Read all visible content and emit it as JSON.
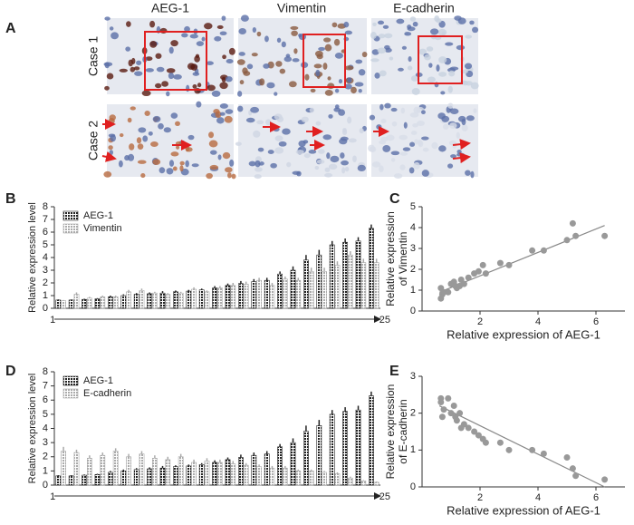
{
  "figure": {
    "column_headers": [
      "AEG-1",
      "Vimentin",
      "E-cadherin"
    ],
    "row_labels": [
      "Case 1",
      "Case 2"
    ],
    "panel_label": "A"
  },
  "chart_data": [
    {
      "type": "bar",
      "panel": "B",
      "ylabel": "Relative expression level",
      "categories": [
        "1",
        null,
        null,
        null,
        null,
        null,
        null,
        null,
        null,
        null,
        null,
        null,
        null,
        null,
        null,
        null,
        null,
        null,
        null,
        null,
        null,
        null,
        null,
        null,
        "25"
      ],
      "series": [
        {
          "name": "AEG-1",
          "color": "#222222",
          "values": [
            0.65,
            0.65,
            0.7,
            0.75,
            0.9,
            1.0,
            1.1,
            1.15,
            1.2,
            1.3,
            1.35,
            1.45,
            1.6,
            1.8,
            1.95,
            2.1,
            2.2,
            2.7,
            3.0,
            3.8,
            4.2,
            5.0,
            5.2,
            5.3,
            6.3
          ],
          "errors": [
            0.05,
            0.05,
            0.05,
            0.05,
            0.1,
            0.1,
            0.1,
            0.1,
            0.15,
            0.1,
            0.1,
            0.1,
            0.15,
            0.15,
            0.2,
            0.2,
            0.2,
            0.2,
            0.3,
            0.4,
            0.4,
            0.3,
            0.3,
            0.3,
            0.3
          ]
        },
        {
          "name": "Vimentin",
          "color": "#aaaaaa",
          "values": [
            0.6,
            1.1,
            0.8,
            0.9,
            0.9,
            1.3,
            1.4,
            1.2,
            1.1,
            1.2,
            1.5,
            1.3,
            1.6,
            1.8,
            1.9,
            2.2,
            1.8,
            2.3,
            2.2,
            2.9,
            2.9,
            3.4,
            4.2,
            3.6,
            3.6
          ],
          "errors": [
            0.05,
            0.15,
            0.1,
            0.1,
            0.1,
            0.15,
            0.15,
            0.1,
            0.1,
            0.1,
            0.15,
            0.1,
            0.15,
            0.2,
            0.2,
            0.2,
            0.2,
            0.2,
            0.2,
            0.3,
            0.3,
            0.3,
            0.3,
            0.3,
            0.3
          ]
        }
      ],
      "ylim": [
        0,
        8
      ],
      "yticks": [
        0,
        1,
        2,
        3,
        4,
        5,
        6,
        7,
        8
      ],
      "legend": "upper left"
    },
    {
      "type": "scatter",
      "panel": "C",
      "ylabel": [
        "Relative expression",
        "of Vimentin"
      ],
      "xlabel": "Relative expression of AEG-1",
      "color": "#999999",
      "x": [
        0.65,
        0.65,
        0.7,
        0.75,
        0.9,
        1.0,
        1.1,
        1.15,
        1.2,
        1.3,
        1.35,
        1.45,
        1.6,
        1.8,
        1.95,
        2.1,
        2.2,
        2.7,
        3.0,
        3.8,
        4.2,
        5.0,
        5.2,
        5.3,
        6.3
      ],
      "values": [
        0.6,
        1.1,
        0.8,
        0.9,
        0.9,
        1.3,
        1.4,
        1.2,
        1.1,
        1.2,
        1.5,
        1.3,
        1.6,
        1.8,
        1.9,
        2.2,
        1.8,
        2.3,
        2.2,
        2.9,
        2.9,
        3.4,
        4.2,
        3.6,
        3.6
      ],
      "fit": {
        "x": [
          0.6,
          6.3
        ],
        "y": [
          0.9,
          4.1
        ]
      },
      "xlim": [
        0,
        7
      ],
      "xticks": [
        2,
        4,
        6
      ],
      "ylim": [
        0,
        5
      ],
      "yticks": [
        0,
        1,
        2,
        3,
        4,
        5
      ]
    },
    {
      "type": "bar",
      "panel": "D",
      "ylabel": "Relative expression level",
      "categories": [
        "1",
        null,
        null,
        null,
        null,
        null,
        null,
        null,
        null,
        null,
        null,
        null,
        null,
        null,
        null,
        null,
        null,
        null,
        null,
        null,
        null,
        null,
        null,
        null,
        "25"
      ],
      "series": [
        {
          "name": "AEG-1",
          "color": "#222222",
          "values": [
            0.65,
            0.65,
            0.7,
            0.75,
            0.9,
            1.0,
            1.1,
            1.15,
            1.2,
            1.3,
            1.35,
            1.45,
            1.6,
            1.8,
            1.95,
            2.1,
            2.2,
            2.7,
            3.0,
            3.8,
            4.2,
            5.0,
            5.2,
            5.3,
            6.3
          ],
          "errors": [
            0.05,
            0.05,
            0.05,
            0.05,
            0.1,
            0.1,
            0.1,
            0.1,
            0.15,
            0.1,
            0.1,
            0.1,
            0.15,
            0.15,
            0.2,
            0.2,
            0.2,
            0.2,
            0.3,
            0.4,
            0.4,
            0.3,
            0.3,
            0.3,
            0.3
          ]
        },
        {
          "name": "E-cadherin",
          "color": "#aaaaaa",
          "values": [
            2.4,
            2.3,
            1.9,
            2.1,
            2.4,
            2.0,
            2.2,
            1.9,
            1.8,
            2.0,
            1.6,
            1.7,
            1.6,
            1.5,
            1.4,
            1.3,
            1.2,
            1.2,
            1.0,
            1.0,
            0.9,
            0.8,
            0.5,
            0.3,
            0.2
          ],
          "errors": [
            0.3,
            0.2,
            0.2,
            0.2,
            0.2,
            0.2,
            0.2,
            0.2,
            0.2,
            0.2,
            0.2,
            0.2,
            0.2,
            0.2,
            0.15,
            0.15,
            0.15,
            0.15,
            0.1,
            0.1,
            0.1,
            0.1,
            0.1,
            0.05,
            0.05
          ]
        }
      ],
      "ylim": [
        0,
        8
      ],
      "yticks": [
        0,
        1,
        2,
        3,
        4,
        5,
        6,
        7,
        8
      ],
      "legend": "upper left"
    },
    {
      "type": "scatter",
      "panel": "E",
      "ylabel": [
        "Relative expression",
        "of E-cadherin"
      ],
      "xlabel": "Relative expression of AEG-1",
      "color": "#999999",
      "x": [
        0.65,
        0.65,
        0.7,
        0.75,
        0.9,
        1.0,
        1.1,
        1.15,
        1.2,
        1.3,
        1.35,
        1.45,
        1.6,
        1.8,
        1.95,
        2.1,
        2.2,
        2.7,
        3.0,
        3.8,
        4.2,
        5.0,
        5.2,
        5.3,
        6.3
      ],
      "values": [
        2.4,
        2.3,
        1.9,
        2.1,
        2.4,
        2.0,
        2.2,
        1.9,
        1.8,
        2.0,
        1.6,
        1.7,
        1.6,
        1.5,
        1.4,
        1.3,
        1.2,
        1.2,
        1.0,
        1.0,
        0.9,
        0.8,
        0.5,
        0.3,
        0.2
      ],
      "fit": {
        "x": [
          0.6,
          6.3
        ],
        "y": [
          2.2,
          0
        ]
      },
      "xlim": [
        0,
        7
      ],
      "xticks": [
        2,
        4,
        6
      ],
      "ylim": [
        0,
        3
      ],
      "yticks": [
        0,
        1,
        2,
        3
      ]
    }
  ]
}
